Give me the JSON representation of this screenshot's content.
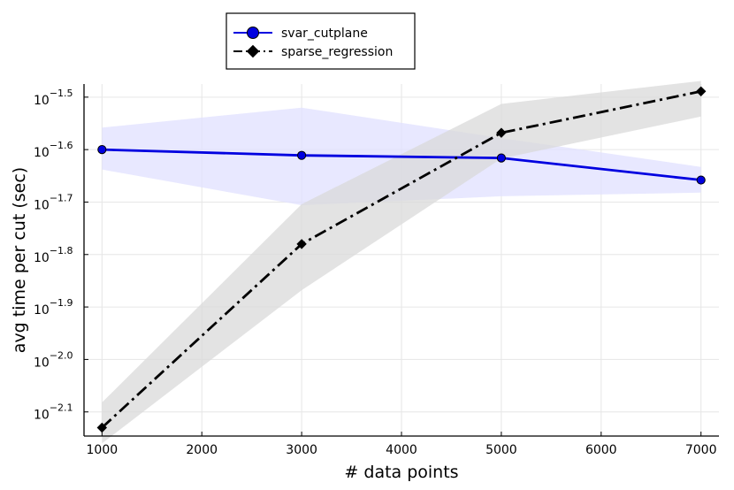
{
  "chart_data": {
    "type": "line",
    "title": "",
    "xlabel": "# data points",
    "ylabel": "avg time per cut (sec)",
    "y_scale": "log10",
    "xlim": [
      820,
      7180
    ],
    "ylim_log10": [
      -2.146,
      -1.475
    ],
    "x_ticks": [
      1000,
      2000,
      3000,
      4000,
      5000,
      6000,
      7000
    ],
    "x_tick_labels": [
      "1000",
      "2000",
      "3000",
      "4000",
      "5000",
      "6000",
      "7000"
    ],
    "y_ticks_log10": [
      -2.1,
      -2.0,
      -1.9,
      -1.8,
      -1.7,
      -1.6,
      -1.5
    ],
    "y_tick_labels": [
      {
        "base": "10",
        "exp": "−2.1"
      },
      {
        "base": "10",
        "exp": "−2.0"
      },
      {
        "base": "10",
        "exp": "−1.9"
      },
      {
        "base": "10",
        "exp": "−1.8"
      },
      {
        "base": "10",
        "exp": "−1.7"
      },
      {
        "base": "10",
        "exp": "−1.6"
      },
      {
        "base": "10",
        "exp": "−1.5"
      }
    ],
    "grid": true,
    "legend_position": "top-center-left",
    "series": [
      {
        "name": "svar_cutplane",
        "color": "#0000e0",
        "band_color": "#e0e0ff",
        "line_style": "solid",
        "marker": "circle",
        "x": [
          1000,
          3000,
          5000,
          7000
        ],
        "y_log10": [
          -1.6,
          -1.611,
          -1.616,
          -1.658
        ],
        "band_upper_log10": [
          -1.558,
          -1.52,
          -1.578,
          -1.633
        ],
        "band_lower_log10": [
          -1.638,
          -1.706,
          -1.689,
          -1.682
        ]
      },
      {
        "name": "sparse_regression",
        "color": "#000000",
        "band_color": "#d9d9d9",
        "line_style": "dashdot",
        "marker": "diamond",
        "x": [
          1000,
          3000,
          5000,
          7000
        ],
        "y_log10": [
          -2.13,
          -1.78,
          -1.568,
          -1.489
        ],
        "band_upper_log10": [
          -2.082,
          -1.704,
          -1.513,
          -1.469
        ],
        "band_lower_log10": [
          -2.16,
          -1.868,
          -1.617,
          -1.537
        ]
      }
    ]
  }
}
